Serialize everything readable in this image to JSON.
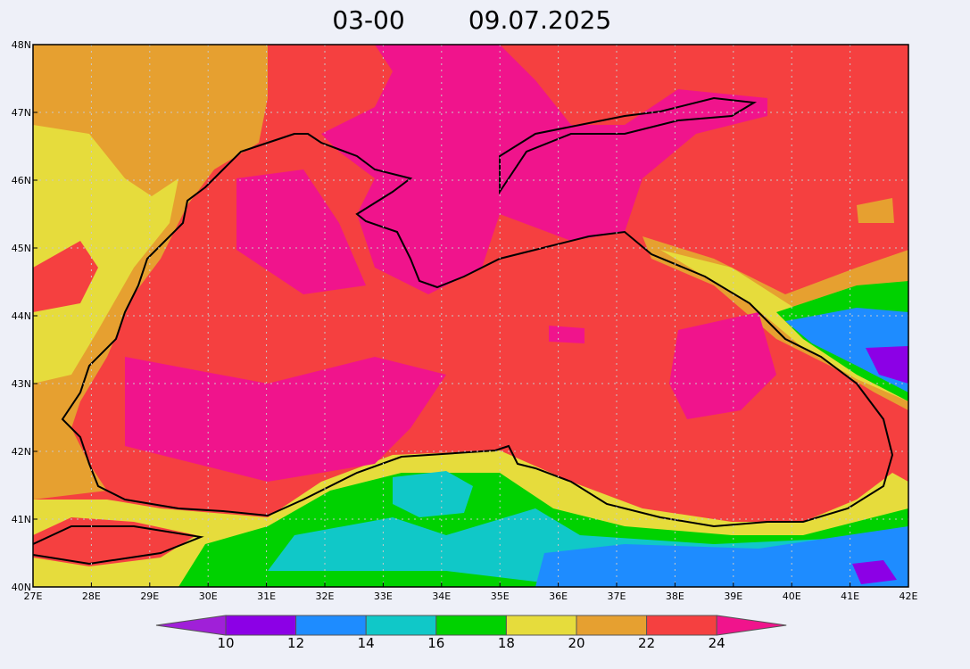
{
  "title": {
    "time": "03-00",
    "date": "09.07.2025"
  },
  "latitude_labels": [
    "48N",
    "47N",
    "46N",
    "45N",
    "44N",
    "43N",
    "42N",
    "41N",
    "40N"
  ],
  "longitude_labels": [
    "27E",
    "28E",
    "29E",
    "30E",
    "31E",
    "32E",
    "33E",
    "34E",
    "35E",
    "36E",
    "37E",
    "38E",
    "39E",
    "40E",
    "41E",
    "42E"
  ],
  "colorbar": {
    "labels": [
      "10",
      "12",
      "14",
      "16",
      "18",
      "20",
      "22",
      "24"
    ],
    "colors": [
      "#a020d8",
      "#8c00e6",
      "#1e8cff",
      "#10c8c8",
      "#00d200",
      "#e6dc3c",
      "#e6a030",
      "#f54040",
      "#f0148c"
    ]
  }
}
